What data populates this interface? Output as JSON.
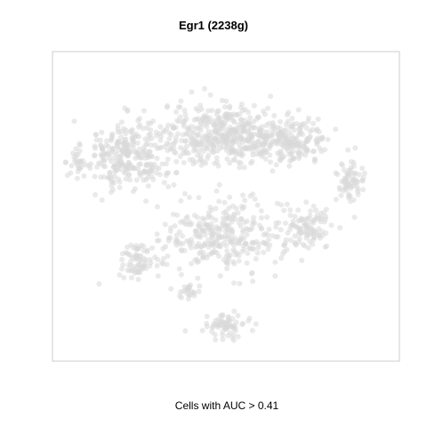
{
  "chart_data": {
    "type": "scatter",
    "title": "Egr1 (2238g)",
    "caption": "Cells with AUC > 0.41",
    "xlabel": "",
    "ylabel": "",
    "xlim": [
      0,
      100
    ],
    "ylim": [
      0,
      100
    ],
    "grid": false,
    "axes_visible": false,
    "point_color": "#d9d9d9",
    "frame_color": "#cccccc",
    "clusters": [
      {
        "name": "",
        "center": [
          20,
          68
        ],
        "spread": [
          9,
          8
        ],
        "count": 290
      },
      {
        "name": "",
        "center": [
          50,
          75
        ],
        "spread": [
          13,
          7
        ],
        "count": 450
      },
      {
        "name": "",
        "center": [
          70,
          73
        ],
        "spread": [
          8,
          5
        ],
        "count": 170
      },
      {
        "name": "",
        "center": [
          49,
          40
        ],
        "spread": [
          12,
          8
        ],
        "count": 320
      },
      {
        "name": "",
        "center": [
          75,
          43
        ],
        "spread": [
          5,
          5
        ],
        "count": 100
      },
      {
        "name": "",
        "center": [
          88,
          58
        ],
        "spread": [
          3,
          5
        ],
        "count": 70
      },
      {
        "name": "",
        "center": [
          23,
          32
        ],
        "spread": [
          4,
          4
        ],
        "count": 70
      },
      {
        "name": "",
        "center": [
          50,
          9
        ],
        "spread": [
          4,
          2.5
        ],
        "count": 70
      },
      {
        "name": "",
        "center": [
          38,
          21
        ],
        "spread": [
          3,
          2
        ],
        "count": 25
      },
      {
        "name": "",
        "center": [
          5,
          64
        ],
        "spread": [
          2,
          3
        ],
        "count": 20
      }
    ]
  }
}
